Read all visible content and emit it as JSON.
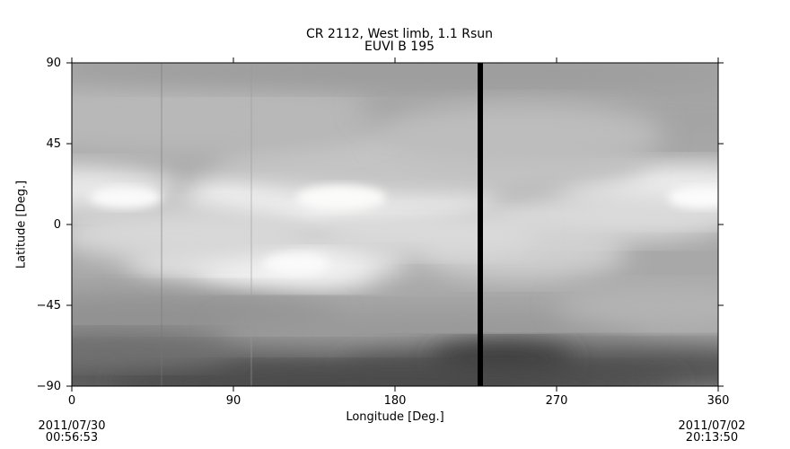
{
  "chart_data": {
    "type": "heatmap",
    "title": "CR 2112, West limb, 1.1 Rsun",
    "subtitle": "EUVI B 195",
    "xlabel": "Longitude [Deg.]",
    "ylabel": "Latitude [Deg.]",
    "xlim": [
      0,
      360
    ],
    "ylim": [
      -90,
      90
    ],
    "xticks": [
      "0",
      "90",
      "180",
      "270",
      "360"
    ],
    "yticks": [
      "90",
      "45",
      "0",
      "−45",
      "−90"
    ],
    "colormap": "grayscale",
    "data_gap_longitude": 227.5,
    "grid": false,
    "colors": {
      "bright": "#f4f4f4",
      "mid": "#a8a8a8",
      "dark": "#4a4a4a",
      "gap": "#000000"
    }
  },
  "footer": {
    "left_date": "2011/07/30",
    "left_time": "00:56:53",
    "right_date": "2011/07/02",
    "right_time": "20:13:50"
  }
}
